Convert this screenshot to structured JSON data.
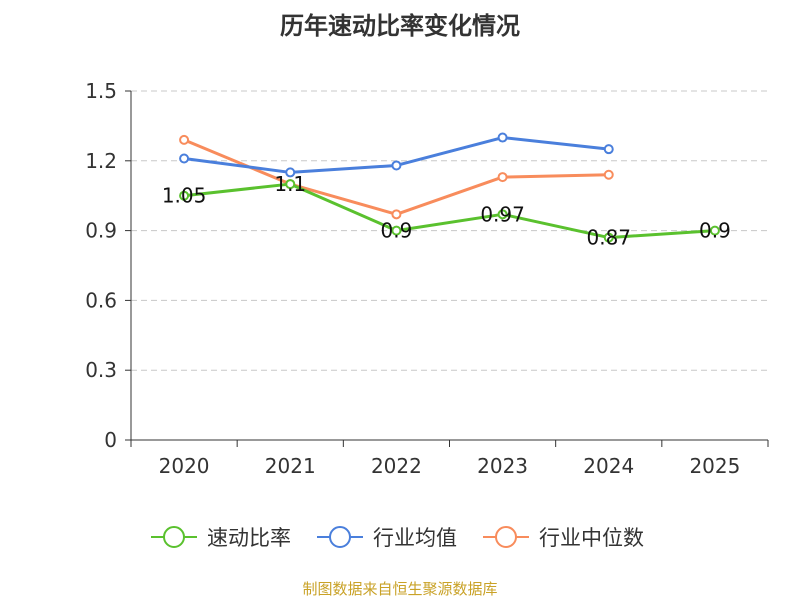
{
  "chart_data": {
    "type": "line",
    "title": "历年速动比率变化情况",
    "categories": [
      "2020",
      "2021",
      "2022",
      "2023",
      "2024",
      "2025"
    ],
    "ylim": [
      0,
      1.5
    ],
    "yticks": [
      "0",
      "0.3",
      "0.6",
      "0.9",
      "1.2",
      "1.5"
    ],
    "grid": true,
    "legend_position": "bottom",
    "series": [
      {
        "name": "速动比率",
        "color": "#5ac12e",
        "values": [
          1.05,
          1.1,
          0.9,
          0.97,
          0.87,
          0.9
        ],
        "labels": [
          "1.05",
          "1.1",
          "0.9",
          "0.97",
          "0.87",
          "0.9"
        ]
      },
      {
        "name": "行业均值",
        "color": "#4a7fdc",
        "values": [
          1.21,
          1.15,
          1.18,
          1.3,
          1.25,
          null
        ]
      },
      {
        "name": "行业中位数",
        "color": "#f88c5c",
        "values": [
          1.29,
          1.1,
          0.97,
          1.13,
          1.14,
          null
        ]
      }
    ]
  },
  "footer": {
    "source": "制图数据来自恒生聚源数据库"
  }
}
